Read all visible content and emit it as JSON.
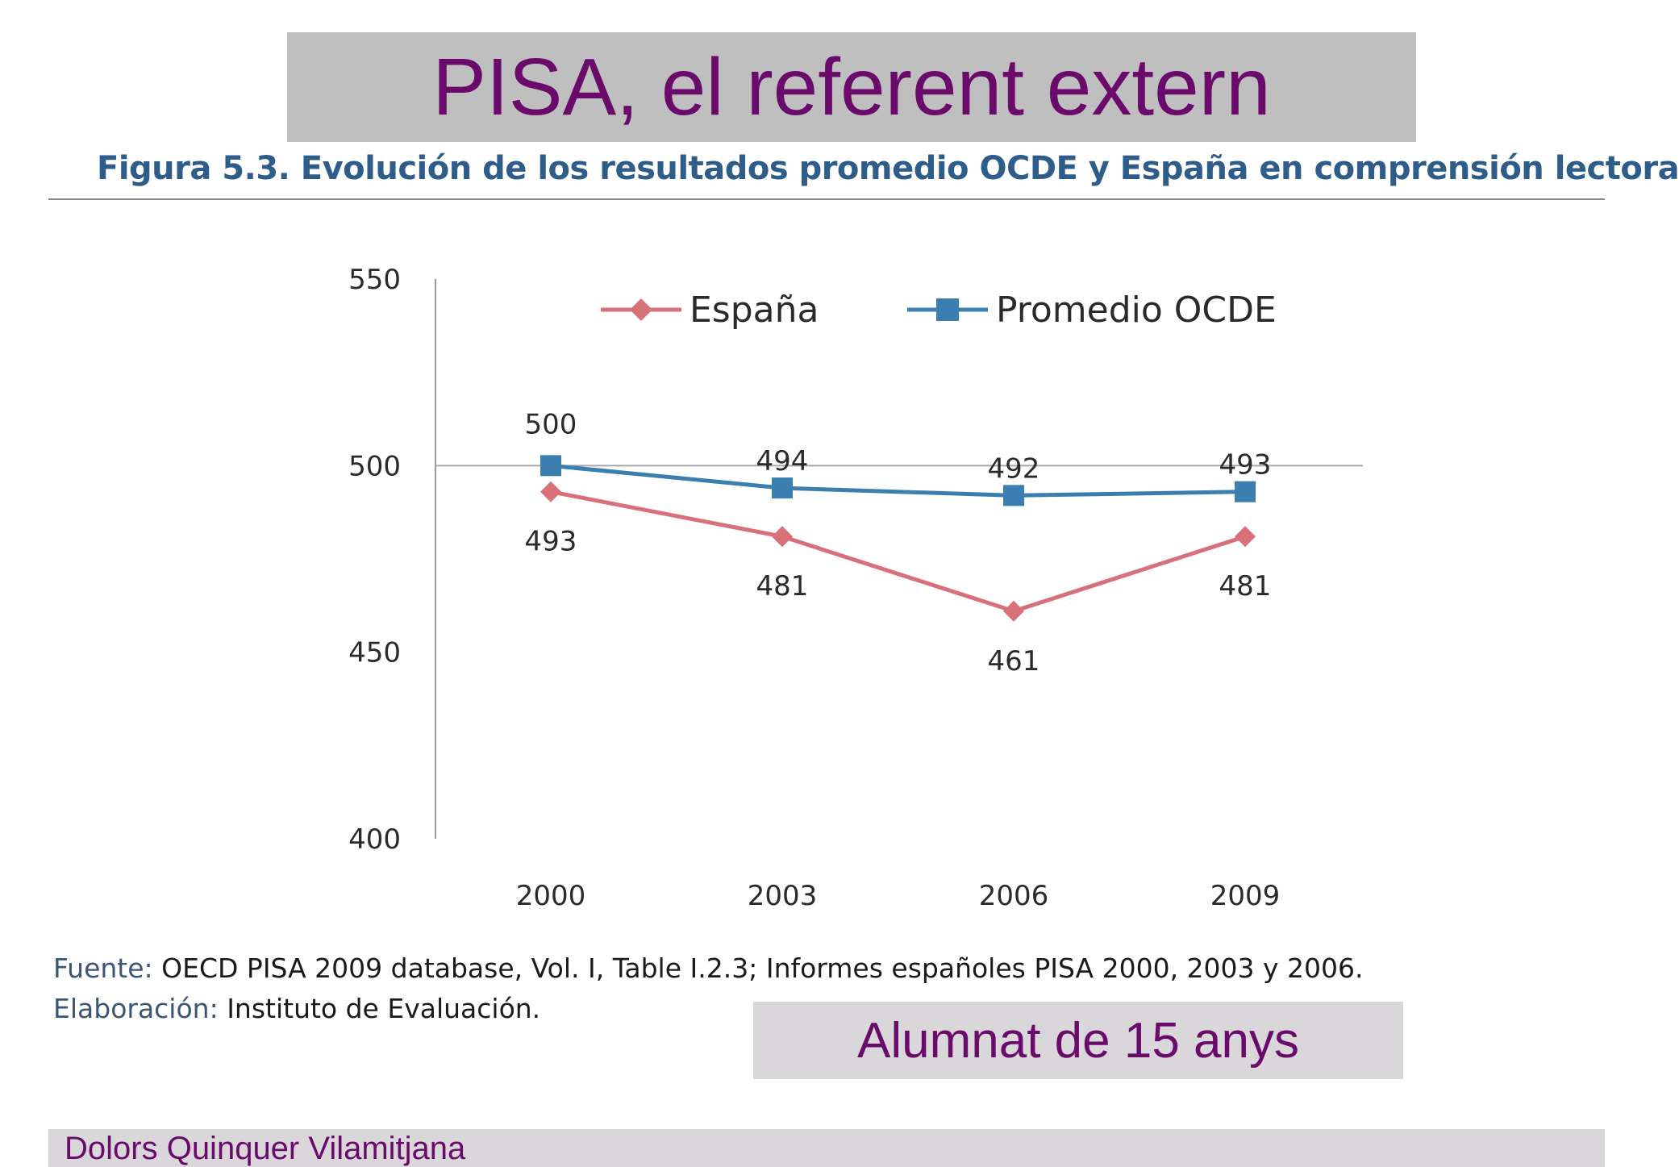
{
  "slide": {
    "title": "PISA, el referent extern",
    "note": "Alumnat de 15 anys",
    "author": "Dolors Quinquer Vilamitjana"
  },
  "figure": {
    "caption": "Figura 5.3. Evolución de los resultados promedio OCDE y España en comprensión lectora",
    "source_label": "Fuente:",
    "source_text": " OECD PISA 2009 database, Vol. I,  Table I.2.3; Informes españoles PISA 2000, 2003 y 2006.",
    "elab_label": "Elaboración:",
    "elab_text": " Instituto de Evaluación."
  },
  "colors": {
    "title_bg": "#c0bfc0",
    "accent_purple": "#6a0a6b",
    "caption_blue": "#2f5d8a",
    "espana": "#d8707a",
    "ocde": "#3a7fb0"
  },
  "chart_data": {
    "type": "line",
    "title": "",
    "xlabel": "",
    "ylabel": "",
    "categories": [
      "2000",
      "2003",
      "2006",
      "2009"
    ],
    "ylim": [
      400,
      550
    ],
    "yticks": [
      400,
      450,
      500,
      550
    ],
    "grid": false,
    "reference_line": 500,
    "legend_position": "top",
    "series": [
      {
        "name": "España",
        "values": [
          493,
          481,
          461,
          481
        ],
        "marker": "diamond",
        "color": "#d8707a",
        "label_position": "below"
      },
      {
        "name": "Promedio OCDE",
        "values": [
          500,
          494,
          492,
          493
        ],
        "marker": "square",
        "color": "#3a7fb0",
        "label_position": "above"
      }
    ]
  }
}
